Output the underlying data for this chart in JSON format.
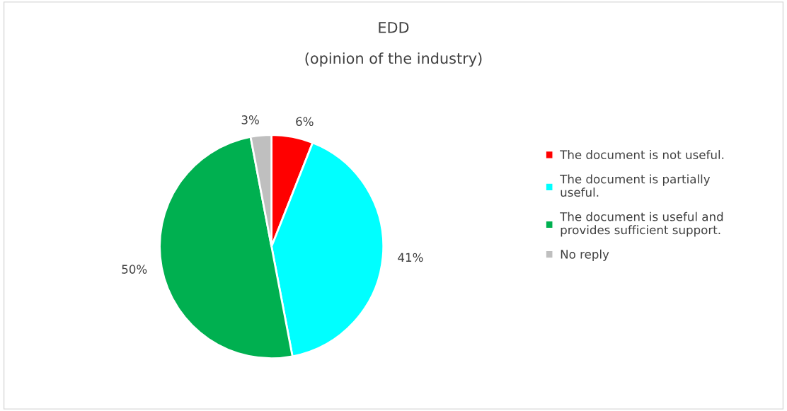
{
  "chart_data": {
    "type": "pie",
    "title": "EDD",
    "subtitle": "(opinion of the industry)",
    "categories": [
      "The document is not useful.",
      "The document is partially useful.",
      "The document is useful and provides sufficient support.",
      "No reply"
    ],
    "values": [
      6,
      41,
      50,
      3
    ],
    "colors": [
      "#ff0000",
      "#00ffff",
      "#00b050",
      "#bfbfbf"
    ],
    "value_labels": [
      "6%",
      "41%",
      "50%",
      "3%"
    ],
    "legend": "right"
  }
}
